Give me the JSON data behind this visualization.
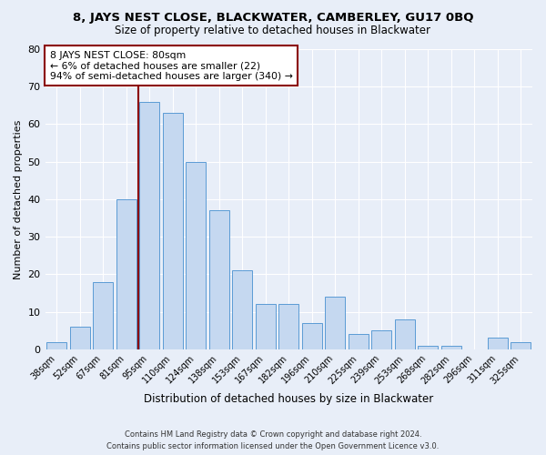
{
  "title": "8, JAYS NEST CLOSE, BLACKWATER, CAMBERLEY, GU17 0BQ",
  "subtitle": "Size of property relative to detached houses in Blackwater",
  "xlabel": "Distribution of detached houses by size in Blackwater",
  "ylabel": "Number of detached properties",
  "categories": [
    "38sqm",
    "52sqm",
    "67sqm",
    "81sqm",
    "95sqm",
    "110sqm",
    "124sqm",
    "138sqm",
    "153sqm",
    "167sqm",
    "182sqm",
    "196sqm",
    "210sqm",
    "225sqm",
    "239sqm",
    "253sqm",
    "268sqm",
    "282sqm",
    "296sqm",
    "311sqm",
    "325sqm"
  ],
  "values": [
    2,
    6,
    18,
    40,
    66,
    63,
    50,
    37,
    21,
    12,
    12,
    7,
    14,
    4,
    5,
    8,
    1,
    1,
    0,
    3,
    2
  ],
  "bar_color": "#c5d8f0",
  "bar_edge_color": "#5b9bd5",
  "vline_index": 3,
  "vline_color": "#8b0000",
  "annotation_text": "8 JAYS NEST CLOSE: 80sqm\n← 6% of detached houses are smaller (22)\n94% of semi-detached houses are larger (340) →",
  "annotation_box_color": "#ffffff",
  "annotation_box_edge_color": "#8b0000",
  "ylim": [
    0,
    80
  ],
  "yticks": [
    0,
    10,
    20,
    30,
    40,
    50,
    60,
    70,
    80
  ],
  "footer": "Contains HM Land Registry data © Crown copyright and database right 2024.\nContains public sector information licensed under the Open Government Licence v3.0.",
  "bg_color": "#e8eef8",
  "grid_color": "#ffffff"
}
